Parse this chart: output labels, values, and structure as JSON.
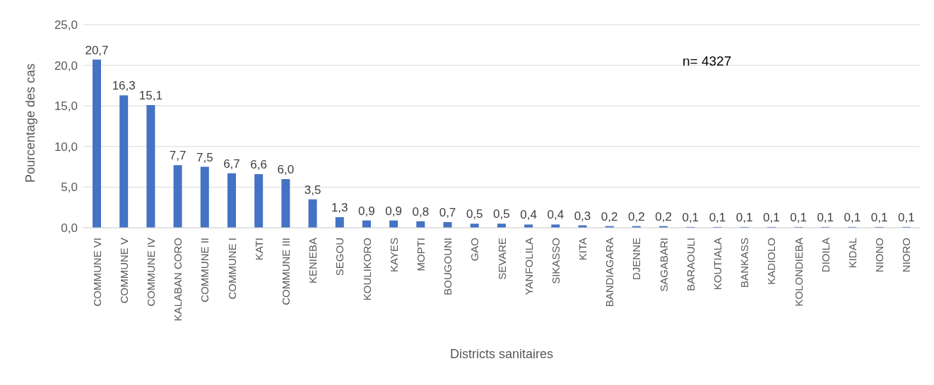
{
  "chart_data": {
    "type": "bar",
    "xlabel": "Districts sanitaires",
    "ylabel": "Pourcentage des cas",
    "categories": [
      "COMMUNE VI",
      "COMMUNE V",
      "COMMUNE IV",
      "KALABAN CORO",
      "COMMUNE II",
      "COMMUNE I",
      "KATI",
      "COMMUNE III",
      "KENIEBA",
      "SEGOU",
      "KOULIKORO",
      "KAYES",
      "MOPTI",
      "BOUGOUNI",
      "GAO",
      "SEVARE",
      "YANFOLILA",
      "SIKASSO",
      "KITA",
      "BANDIAGARA",
      "DJENNE",
      "SAGABARI",
      "BARAOULI",
      "KOUTIALA",
      "BANKASS",
      "KADIOLO",
      "KOLONDIEBA",
      "DIOILA",
      "KIDAL",
      "NIONO",
      "NIORO"
    ],
    "values": [
      20.7,
      16.3,
      15.1,
      7.7,
      7.5,
      6.7,
      6.6,
      6.0,
      3.5,
      1.3,
      0.9,
      0.9,
      0.8,
      0.7,
      0.5,
      0.5,
      0.4,
      0.4,
      0.3,
      0.2,
      0.2,
      0.2,
      0.1,
      0.1,
      0.1,
      0.1,
      0.1,
      0.1,
      0.1,
      0.1,
      0.1
    ],
    "value_labels": [
      "20,7",
      "16,3",
      "15,1",
      "7,7",
      "7,5",
      "6,7",
      "6,6",
      "6,0",
      "3,5",
      "1,3",
      "0,9",
      "0,9",
      "0,8",
      "0,7",
      "0,5",
      "0,5",
      "0,4",
      "0,4",
      "0,3",
      "0,2",
      "0,2",
      "0,2",
      "0,1",
      "0,1",
      "0,1",
      "0,1",
      "0,1",
      "0,1",
      "0,1",
      "0,1",
      "0,1"
    ],
    "color": "#4472c4",
    "ylim": [
      0,
      25
    ],
    "yticks": [
      {
        "value": 0,
        "label": "0,0"
      },
      {
        "value": 5,
        "label": "5,0"
      },
      {
        "value": 10,
        "label": "10,0"
      },
      {
        "value": 15,
        "label": "15,0"
      },
      {
        "value": 20,
        "label": "20,0"
      },
      {
        "value": 25,
        "label": "25,0"
      }
    ],
    "grid": "y",
    "annotations": [
      "n= 4327"
    ]
  }
}
